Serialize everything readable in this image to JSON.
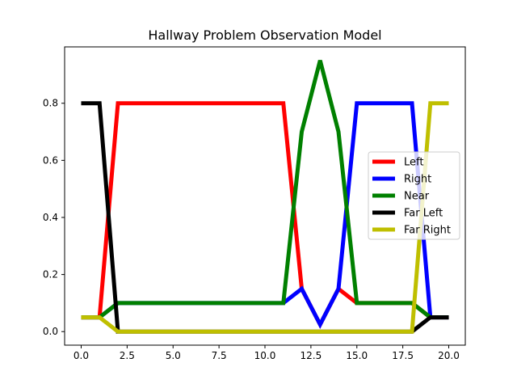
{
  "chart_data": {
    "type": "line",
    "title": "Hallway Problem Observation Model",
    "xlabel": "",
    "ylabel": "",
    "xlim": [
      -0.9,
      20.9
    ],
    "ylim": [
      -0.0475,
      0.9975
    ],
    "grid": false,
    "legend_placement": "center-right",
    "x": [
      0,
      1,
      2,
      3,
      4,
      5,
      6,
      7,
      8,
      9,
      10,
      11,
      12,
      13,
      14,
      15,
      16,
      17,
      18,
      19,
      20
    ],
    "x_ticks": [
      0.0,
      2.5,
      5.0,
      7.5,
      10.0,
      12.5,
      15.0,
      17.5,
      20.0
    ],
    "x_tick_labels": [
      "0.0",
      "2.5",
      "5.0",
      "7.5",
      "10.0",
      "12.5",
      "15.0",
      "17.5",
      "20.0"
    ],
    "y_ticks": [
      0.0,
      0.2,
      0.4,
      0.6,
      0.8
    ],
    "y_tick_labels": [
      "0.0",
      "0.2",
      "0.4",
      "0.6",
      "0.8"
    ],
    "series": [
      {
        "name": "Left",
        "color": "#ff0000",
        "values": [
          0.05,
          0.05,
          0.8,
          0.8,
          0.8,
          0.8,
          0.8,
          0.8,
          0.8,
          0.8,
          0.8,
          0.8,
          0.15,
          0.025,
          0.15,
          0.1,
          0.1,
          0.1,
          0.1,
          0.05,
          0.05
        ]
      },
      {
        "name": "Right",
        "color": "#0000ff",
        "values": [
          0.05,
          0.05,
          0.1,
          0.1,
          0.1,
          0.1,
          0.1,
          0.1,
          0.1,
          0.1,
          0.1,
          0.1,
          0.15,
          0.025,
          0.15,
          0.8,
          0.8,
          0.8,
          0.8,
          0.05,
          0.05
        ]
      },
      {
        "name": "Near",
        "color": "#008000",
        "values": [
          0.05,
          0.05,
          0.1,
          0.1,
          0.1,
          0.1,
          0.1,
          0.1,
          0.1,
          0.1,
          0.1,
          0.1,
          0.7,
          0.95,
          0.7,
          0.1,
          0.1,
          0.1,
          0.1,
          0.05,
          0.05
        ]
      },
      {
        "name": "Far Left",
        "color": "#000000",
        "values": [
          0.8,
          0.8,
          0.0,
          0.0,
          0.0,
          0.0,
          0.0,
          0.0,
          0.0,
          0.0,
          0.0,
          0.0,
          0.0,
          0.0,
          0.0,
          0.0,
          0.0,
          0.0,
          0.0,
          0.05,
          0.05
        ]
      },
      {
        "name": "Far Right",
        "color": "#bfbf00",
        "values": [
          0.05,
          0.05,
          0.0,
          0.0,
          0.0,
          0.0,
          0.0,
          0.0,
          0.0,
          0.0,
          0.0,
          0.0,
          0.0,
          0.0,
          0.0,
          0.0,
          0.0,
          0.0,
          0.0,
          0.8,
          0.8
        ]
      }
    ]
  }
}
